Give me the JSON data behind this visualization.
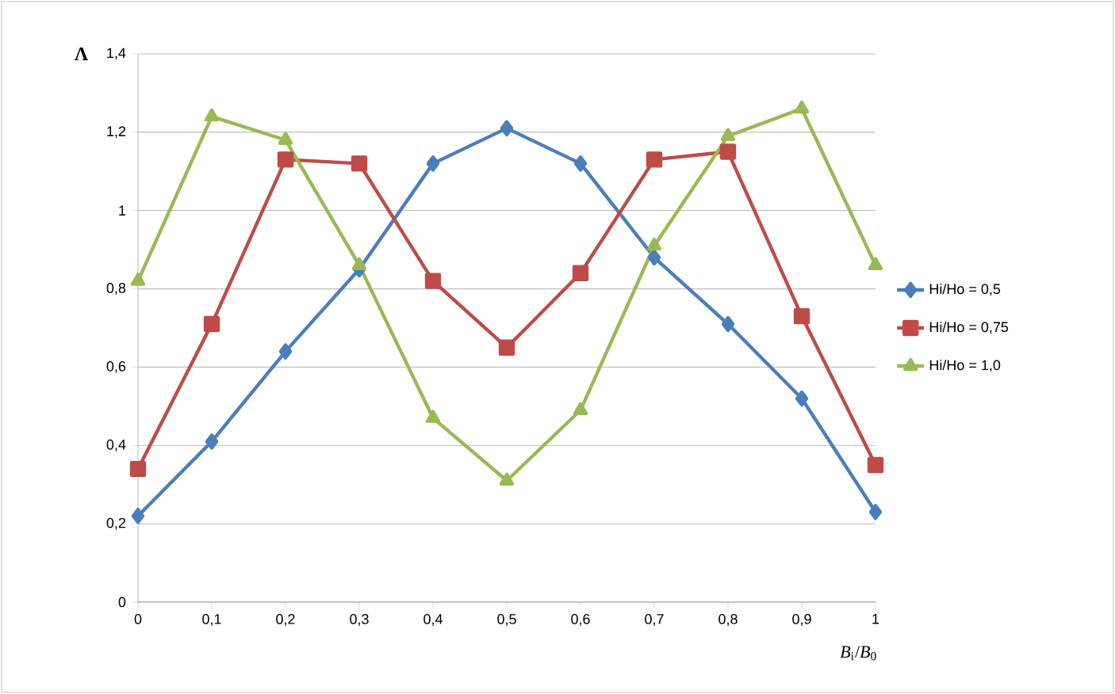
{
  "chart_data": {
    "type": "line",
    "ylabel": "Λ",
    "xlabel": "*B*$_{i}$/*B*$_{0}$",
    "x": [
      0,
      0.1,
      0.2,
      0.3,
      0.4,
      0.5,
      0.6,
      0.7,
      0.8,
      0.9,
      1
    ],
    "series": [
      {
        "name": "Hi/Ho = 0,5",
        "color": "#4a7ebb",
        "marker": "diamond",
        "values": [
          0.22,
          0.41,
          0.64,
          0.85,
          1.12,
          1.21,
          1.12,
          0.88,
          0.71,
          0.52,
          0.23
        ]
      },
      {
        "name": "Hi/Ho = 0,75",
        "color": "#be4b48",
        "marker": "square",
        "values": [
          0.34,
          0.71,
          1.13,
          1.12,
          0.82,
          0.65,
          0.84,
          1.13,
          1.15,
          0.73,
          0.35
        ]
      },
      {
        "name": "Hi/Ho = 1,0",
        "color": "#98b954",
        "marker": "triangle",
        "values": [
          0.82,
          1.24,
          1.18,
          0.86,
          0.47,
          0.31,
          0.49,
          0.91,
          1.19,
          1.26,
          0.86
        ]
      }
    ],
    "xlim": [
      0,
      1
    ],
    "xticks": [
      0,
      {
        "value": 0.1,
        "label": "0,1"
      },
      {
        "value": 0.2,
        "label": "0,2"
      },
      {
        "value": 0.3,
        "label": "0,3"
      },
      {
        "value": 0.4,
        "label": "0,4"
      },
      {
        "value": 0.5,
        "label": "0,5"
      },
      {
        "value": 0.6,
        "label": "0,6"
      },
      {
        "value": 0.7,
        "label": "0,7"
      },
      {
        "value": 0.8,
        "label": "0,8"
      },
      {
        "value": 0.9,
        "label": "0,9"
      },
      1
    ],
    "ylim": [
      0,
      1.4
    ],
    "yticks": [
      0,
      {
        "value": 0.2,
        "label": "0,2"
      },
      {
        "value": 0.4,
        "label": "0,4"
      },
      {
        "value": 0.6,
        "label": "0,6"
      },
      {
        "value": 0.8,
        "label": "0,8"
      },
      1,
      {
        "value": 1.2,
        "label": "1,2"
      },
      {
        "value": 1.4,
        "label": "1,4"
      }
    ],
    "grid": "y",
    "legend": "right",
    "line_style": "solid"
  }
}
